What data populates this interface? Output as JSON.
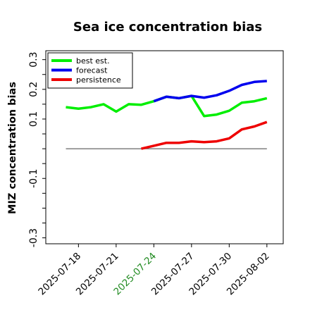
{
  "chart_data": {
    "type": "line",
    "title": "Sea ice concentration bias",
    "xlabel": "",
    "ylabel": "MIZ concentration bias",
    "ylim": [
      -0.32,
      0.33
    ],
    "yticks": [
      {
        "value": 0.3,
        "label": "0.3"
      },
      {
        "value": 0.2,
        "label": "0.2"
      },
      {
        "value": 0.1,
        "label": "0.1"
      },
      {
        "value": -0.1,
        "label": "-0.1"
      },
      {
        "value": -0.3,
        "label": "-0.3"
      }
    ],
    "yminor": [
      0.3,
      0.25,
      0.2,
      0.15,
      0.1,
      0.05,
      0,
      -0.05,
      -0.1,
      -0.15,
      -0.2,
      -0.25,
      -0.3
    ],
    "x_start": "2025-07-16",
    "xlim": [
      -0.6,
      18.3
    ],
    "xticks": [
      {
        "label": "2025-07-18",
        "highlight": false
      },
      {
        "label": "2025-07-21",
        "highlight": false
      },
      {
        "label": "2025-07-24",
        "highlight": true
      },
      {
        "label": "2025-07-27",
        "highlight": false
      },
      {
        "label": "2025-07-30",
        "highlight": false
      },
      {
        "label": "2025-08-02",
        "highlight": false
      }
    ],
    "xtick_dates": [
      "2025-07-18",
      "2025-07-21",
      "2025-07-24",
      "2025-07-27",
      "2025-07-30",
      "2025-08-02"
    ],
    "highlight_color": "#228b22",
    "zero_line": {
      "y": 0,
      "color": "#666666"
    },
    "legend_position": "upper-left",
    "series": [
      {
        "name": "best est.",
        "color": "#00ee00",
        "x": [
          "2025-07-17",
          "2025-07-18",
          "2025-07-19",
          "2025-07-20",
          "2025-07-21",
          "2025-07-22",
          "2025-07-23",
          "2025-07-24",
          "2025-07-25",
          "2025-07-26",
          "2025-07-27",
          "2025-07-28",
          "2025-07-29",
          "2025-07-30",
          "2025-07-31",
          "2025-08-01",
          "2025-08-02"
        ],
        "y": [
          0.14,
          0.135,
          0.14,
          0.15,
          0.125,
          0.15,
          0.148,
          0.16,
          0.175,
          0.17,
          0.178,
          0.11,
          0.115,
          0.128,
          0.155,
          0.16,
          0.17
        ]
      },
      {
        "name": "forecast",
        "color": "#0000ee",
        "x": [
          "2025-07-24",
          "2025-07-25",
          "2025-07-26",
          "2025-07-27",
          "2025-07-28",
          "2025-07-29",
          "2025-07-30",
          "2025-07-31",
          "2025-08-01",
          "2025-08-02"
        ],
        "y": [
          0.16,
          0.175,
          0.17,
          0.178,
          0.172,
          0.18,
          0.195,
          0.215,
          0.225,
          0.228
        ]
      },
      {
        "name": "persistence",
        "color": "#ee0000",
        "x": [
          "2025-07-23",
          "2025-07-24",
          "2025-07-25",
          "2025-07-26",
          "2025-07-27",
          "2025-07-28",
          "2025-07-29",
          "2025-07-30",
          "2025-07-31",
          "2025-08-01",
          "2025-08-02"
        ],
        "y": [
          0.0,
          0.01,
          0.02,
          0.02,
          0.025,
          0.022,
          0.025,
          0.035,
          0.065,
          0.075,
          0.09
        ]
      }
    ]
  }
}
